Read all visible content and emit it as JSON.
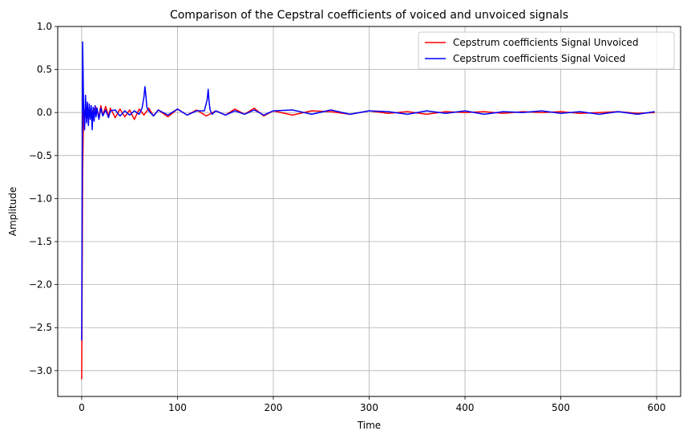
{
  "chart_data": {
    "type": "line",
    "title": "Comparison of the Cepstral coefficients of voiced and unvoiced signals",
    "xlabel": "Time",
    "ylabel": "Amplitude",
    "xlim": [
      -25,
      625
    ],
    "ylim": [
      -3.3,
      1.0
    ],
    "x_ticks": [
      0,
      100,
      200,
      300,
      400,
      500,
      600
    ],
    "y_ticks": [
      -3.0,
      -2.5,
      -2.0,
      -1.5,
      -1.0,
      -0.5,
      0.0,
      0.5,
      1.0
    ],
    "x_tick_labels": [
      "0",
      "100",
      "200",
      "300",
      "400",
      "500",
      "600"
    ],
    "y_tick_labels": [
      "−3.0",
      "−2.5",
      "−2.0",
      "−1.5",
      "−1.0",
      "−0.5",
      "0.0",
      "0.5",
      "1.0"
    ],
    "grid": true,
    "legend_position": "upper right",
    "series": [
      {
        "name": "Cepstrum coefficients Signal Unvoiced",
        "color": "#ff0000",
        "x": [
          0,
          1,
          2,
          3,
          4,
          5,
          6,
          8,
          10,
          12,
          15,
          18,
          20,
          22,
          25,
          28,
          30,
          35,
          40,
          45,
          50,
          55,
          60,
          65,
          70,
          75,
          80,
          90,
          100,
          110,
          120,
          130,
          140,
          150,
          160,
          170,
          180,
          190,
          200,
          220,
          240,
          260,
          280,
          300,
          320,
          340,
          360,
          380,
          400,
          420,
          440,
          460,
          480,
          500,
          520,
          540,
          560,
          580,
          598
        ],
        "y": [
          -3.1,
          -0.7,
          0.0,
          0.03,
          -0.05,
          0.04,
          -0.06,
          0.05,
          -0.04,
          0.03,
          0.06,
          -0.05,
          0.08,
          -0.03,
          0.07,
          -0.04,
          0.05,
          -0.06,
          0.04,
          -0.05,
          0.03,
          -0.08,
          0.04,
          -0.03,
          0.05,
          -0.04,
          0.03,
          -0.05,
          0.04,
          -0.03,
          0.03,
          -0.04,
          0.02,
          -0.03,
          0.04,
          -0.02,
          0.05,
          -0.04,
          0.02,
          -0.03,
          0.02,
          0.01,
          -0.02,
          0.02,
          -0.01,
          0.01,
          -0.02,
          0.01,
          0.0,
          0.01,
          -0.01,
          0.01,
          0.0,
          0.01,
          -0.01,
          0.0,
          0.01,
          -0.01,
          0.0
        ]
      },
      {
        "name": "Cepstrum coefficients Signal Voiced",
        "color": "#0000ff",
        "x": [
          0,
          1,
          2,
          3,
          4,
          5,
          6,
          7,
          8,
          9,
          10,
          11,
          12,
          13,
          14,
          15,
          16,
          18,
          20,
          22,
          25,
          28,
          30,
          35,
          40,
          45,
          50,
          55,
          60,
          63,
          65,
          66,
          67,
          68,
          70,
          75,
          80,
          90,
          100,
          110,
          120,
          128,
          131,
          132,
          133,
          134,
          136,
          140,
          150,
          160,
          170,
          180,
          190,
          200,
          220,
          240,
          260,
          280,
          300,
          320,
          340,
          360,
          380,
          400,
          420,
          440,
          460,
          480,
          500,
          520,
          540,
          560,
          580,
          598
        ],
        "y": [
          -2.65,
          0.82,
          0.05,
          -0.2,
          0.2,
          -0.12,
          0.12,
          -0.15,
          0.1,
          -0.08,
          0.08,
          -0.2,
          0.06,
          -0.1,
          0.08,
          -0.05,
          0.05,
          -0.08,
          0.05,
          -0.04,
          0.03,
          -0.06,
          0.02,
          0.03,
          -0.04,
          0.02,
          -0.03,
          0.02,
          -0.02,
          0.05,
          0.18,
          0.3,
          0.2,
          0.06,
          0.02,
          -0.04,
          0.03,
          -0.03,
          0.04,
          -0.03,
          0.02,
          0.02,
          0.15,
          0.27,
          0.12,
          0.03,
          -0.02,
          0.02,
          -0.03,
          0.02,
          -0.02,
          0.03,
          -0.03,
          0.02,
          0.03,
          -0.02,
          0.03,
          -0.02,
          0.02,
          0.01,
          -0.02,
          0.02,
          -0.01,
          0.02,
          -0.02,
          0.01,
          0.0,
          0.02,
          -0.01,
          0.01,
          -0.02,
          0.01,
          -0.02,
          0.01
        ]
      }
    ]
  }
}
